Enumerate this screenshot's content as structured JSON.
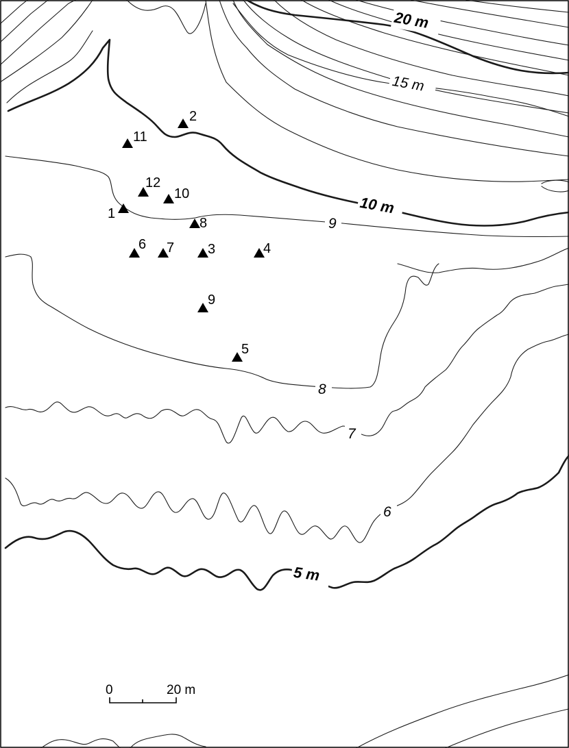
{
  "contour_labels": {
    "c20": "20 m",
    "c15": "15 m",
    "c10": "10 m",
    "c9": "9",
    "c8": "8",
    "c7": "7",
    "c6": "6",
    "c5": "5 m"
  },
  "sites": [
    {
      "id": "site-1",
      "label": "1"
    },
    {
      "id": "site-2",
      "label": "2"
    },
    {
      "id": "site-3",
      "label": "3"
    },
    {
      "id": "site-4",
      "label": "4"
    },
    {
      "id": "site-5",
      "label": "5"
    },
    {
      "id": "site-6",
      "label": "6"
    },
    {
      "id": "site-7",
      "label": "7"
    },
    {
      "id": "site-8",
      "label": "8"
    },
    {
      "id": "site-9",
      "label": "9"
    },
    {
      "id": "site-10",
      "label": "10"
    },
    {
      "id": "site-11",
      "label": "11"
    },
    {
      "id": "site-12",
      "label": "12"
    }
  ],
  "scale_bar": {
    "start_label": "0",
    "end_label": "20 m"
  },
  "marker_icon": "triangle-marker-icon"
}
